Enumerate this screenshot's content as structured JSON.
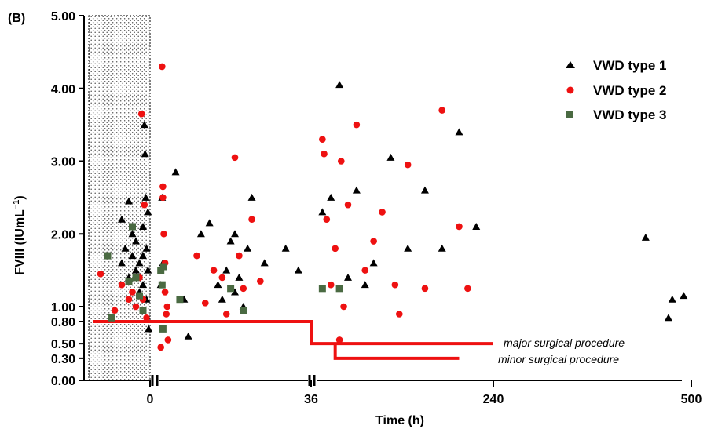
{
  "chart_data": {
    "type": "scatter",
    "panel_label": "(B)",
    "xlabel": "Time (h)",
    "ylabel": "FVIII (IUmL",
    "ylabel_sup": "−1",
    "ylabel_close": ")",
    "ylim": [
      0,
      5
    ],
    "x_tick_labels": [
      "0",
      "36",
      "240",
      "500"
    ],
    "y_ticks": [
      {
        "value": 0.0,
        "label": "0.00"
      },
      {
        "value": 0.3,
        "label": "0.30"
      },
      {
        "value": 0.5,
        "label": "0.50"
      },
      {
        "value": 0.8,
        "label": "0.80"
      },
      {
        "value": 1.0,
        "label": "1.00"
      },
      {
        "value": 2.0,
        "label": "2.00"
      },
      {
        "value": 3.0,
        "label": "3.00"
      },
      {
        "value": 4.0,
        "label": "4.00"
      },
      {
        "value": 5.0,
        "label": "5.00"
      }
    ],
    "x_axis": "broken axis with segments: pre-op (shaded), 0–36 h, 36–240 h, 240–500 h",
    "shaded_region": "pre-operative period before time 0",
    "legend_position": "top-right",
    "series": [
      {
        "name": "VWD type 1",
        "marker": "triangle",
        "color": "#000000",
        "points": [
          [
            -4,
            1.6
          ],
          [
            -4,
            2.2
          ],
          [
            -3.5,
            1.8
          ],
          [
            -3,
            2.45
          ],
          [
            -3,
            1.4
          ],
          [
            -2.5,
            1.7
          ],
          [
            -2.5,
            2.0
          ],
          [
            -2,
            1.5
          ],
          [
            -2,
            1.9
          ],
          [
            -1.5,
            1.6
          ],
          [
            -1.5,
            1.2
          ],
          [
            -1,
            2.1
          ],
          [
            -1,
            1.7
          ],
          [
            -1,
            1.3
          ],
          [
            -0.8,
            3.5
          ],
          [
            -0.7,
            3.1
          ],
          [
            -0.6,
            2.5
          ],
          [
            -0.5,
            1.8
          ],
          [
            -0.5,
            1.1
          ],
          [
            -0.3,
            2.3
          ],
          [
            -0.3,
            1.5
          ],
          [
            -0.2,
            0.7
          ],
          [
            0.8,
            2.5
          ],
          [
            0.5,
            1.3
          ],
          [
            1,
            1.6
          ],
          [
            4,
            2.85
          ],
          [
            6,
            1.1
          ],
          [
            7,
            0.6
          ],
          [
            10,
            2.0
          ],
          [
            12,
            2.15
          ],
          [
            14,
            1.3
          ],
          [
            15,
            1.1
          ],
          [
            16,
            1.5
          ],
          [
            17,
            1.9
          ],
          [
            18,
            2.0
          ],
          [
            18,
            1.2
          ],
          [
            19,
            1.4
          ],
          [
            20,
            1.0
          ],
          [
            21,
            1.8
          ],
          [
            22,
            2.5
          ],
          [
            25,
            1.6
          ],
          [
            30,
            1.8
          ],
          [
            33,
            1.5
          ],
          [
            40,
            2.3
          ],
          [
            50,
            2.5
          ],
          [
            60,
            4.05
          ],
          [
            70,
            1.4
          ],
          [
            80,
            2.6
          ],
          [
            90,
            1.3
          ],
          [
            100,
            1.6
          ],
          [
            120,
            3.05
          ],
          [
            140,
            1.8
          ],
          [
            160,
            2.6
          ],
          [
            180,
            1.8
          ],
          [
            200,
            3.4
          ],
          [
            220,
            2.1
          ],
          [
            440,
            1.95
          ],
          [
            470,
            0.85
          ],
          [
            475,
            1.1
          ],
          [
            490,
            1.15
          ]
        ]
      },
      {
        "name": "VWD type 2",
        "marker": "circle",
        "color": "#ee1111",
        "points": [
          [
            -7,
            1.45
          ],
          [
            -5,
            0.95
          ],
          [
            -4,
            1.3
          ],
          [
            -3,
            1.1
          ],
          [
            -2.5,
            1.2
          ],
          [
            -2,
            1.0
          ],
          [
            -1.5,
            1.4
          ],
          [
            -1.2,
            3.65
          ],
          [
            -1,
            1.1
          ],
          [
            -0.8,
            2.4
          ],
          [
            -0.5,
            0.85
          ],
          [
            0.5,
            0.45
          ],
          [
            0.8,
            4.3
          ],
          [
            1,
            2.65
          ],
          [
            1,
            2.5
          ],
          [
            1.2,
            2.0
          ],
          [
            1.5,
            1.2
          ],
          [
            1.5,
            1.6
          ],
          [
            1.8,
            0.9
          ],
          [
            2,
            1.0
          ],
          [
            2.2,
            0.55
          ],
          [
            9,
            1.7
          ],
          [
            11,
            1.05
          ],
          [
            13,
            1.5
          ],
          [
            15,
            1.4
          ],
          [
            16,
            0.9
          ],
          [
            18,
            3.05
          ],
          [
            19,
            1.7
          ],
          [
            20,
            1.25
          ],
          [
            22,
            2.2
          ],
          [
            24,
            1.35
          ],
          [
            40,
            3.3
          ],
          [
            42,
            3.1
          ],
          [
            45,
            2.2
          ],
          [
            50,
            1.3
          ],
          [
            55,
            1.8
          ],
          [
            60,
            0.55
          ],
          [
            62,
            3.0
          ],
          [
            65,
            1.0
          ],
          [
            70,
            2.4
          ],
          [
            80,
            3.5
          ],
          [
            90,
            1.5
          ],
          [
            100,
            1.9
          ],
          [
            110,
            2.3
          ],
          [
            125,
            1.3
          ],
          [
            130,
            0.9
          ],
          [
            140,
            2.95
          ],
          [
            160,
            1.25
          ],
          [
            180,
            3.7
          ],
          [
            200,
            2.1
          ],
          [
            210,
            1.25
          ]
        ]
      },
      {
        "name": "VWD type 3",
        "marker": "square",
        "color": "#4a6a42",
        "points": [
          [
            -6,
            1.7
          ],
          [
            -5.5,
            0.85
          ],
          [
            -3,
            1.35
          ],
          [
            -2.5,
            2.1
          ],
          [
            -2,
            1.4
          ],
          [
            -1.5,
            1.15
          ],
          [
            -1,
            0.95
          ],
          [
            0.5,
            1.5
          ],
          [
            0.8,
            1.3
          ],
          [
            1,
            0.7
          ],
          [
            1.2,
            1.55
          ],
          [
            5,
            1.1
          ],
          [
            17,
            1.25
          ],
          [
            20,
            0.95
          ],
          [
            40,
            1.25
          ],
          [
            60,
            1.25
          ]
        ]
      }
    ],
    "threshold_lines": [
      {
        "label": "major surgical procedure",
        "color": "#ee1111",
        "steps": [
          [
            -8,
            0.8
          ],
          [
            36,
            0.8
          ],
          [
            36,
            0.5
          ],
          [
            240,
            0.5
          ]
        ]
      },
      {
        "label": "minor surgical procedure",
        "color": "#ee1111",
        "steps": [
          [
            55,
            0.5
          ],
          [
            55,
            0.3
          ],
          [
            200,
            0.3
          ]
        ]
      }
    ]
  }
}
